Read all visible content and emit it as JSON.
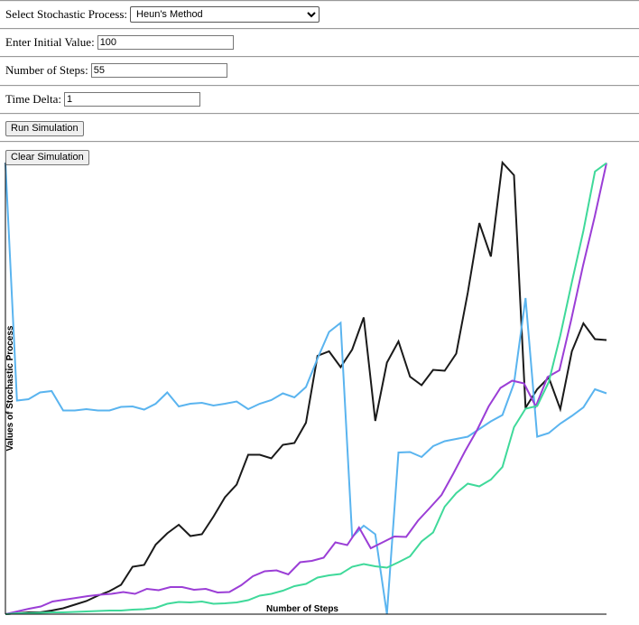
{
  "form": {
    "process_label": "Select Stochastic Process:",
    "process_value": "Heun's Method",
    "initial_label": "Enter Initial Value:",
    "initial_value": "100",
    "steps_label": "Number of Steps:",
    "steps_value": "55",
    "delta_label": "Time Delta:",
    "delta_value": "1",
    "run_label": "Run Simulation",
    "clear_label": "Clear Simulation"
  },
  "chart_data": {
    "type": "line",
    "xlabel": "Number of Steps",
    "ylabel": "Values of Stochastic Process",
    "xlim": [
      0,
      55
    ],
    "ylim": [
      0,
      100
    ],
    "grid": false,
    "series": [
      {
        "color": "#1a1a1a",
        "values": [
          0.0,
          0.2,
          0.4,
          0.4,
          0.8,
          1.3,
          2.1,
          2.9,
          4.1,
          5.1,
          6.5,
          10.5,
          10.9,
          15.4,
          17.9,
          19.8,
          17.3,
          17.7,
          21.6,
          25.9,
          28.7,
          35.3,
          35.3,
          34.5,
          37.5,
          37.9,
          42.4,
          57.2,
          58.2,
          54.7,
          58.6,
          65.7,
          42.8,
          55.7,
          60.4,
          52.6,
          50.7,
          54.1,
          53.9,
          57.7,
          71.2,
          86.6,
          79.2,
          100.0,
          97.2,
          45.7,
          49.8,
          52.4,
          45.4,
          58.2,
          64.4,
          60.9,
          60.7
        ]
      },
      {
        "color": "#5ab4ef",
        "values": [
          100.0,
          47.3,
          47.6,
          49.1,
          49.4,
          45.1,
          45.1,
          45.4,
          45.1,
          45.1,
          45.9,
          46.0,
          45.3,
          46.6,
          49.1,
          46.0,
          46.6,
          46.8,
          46.2,
          46.6,
          47.1,
          45.4,
          46.6,
          47.4,
          48.9,
          48.0,
          50.3,
          56.6,
          62.5,
          64.5,
          17.1,
          19.6,
          17.7,
          0.0,
          35.8,
          35.9,
          34.8,
          37.2,
          38.3,
          38.8,
          39.3,
          41.0,
          42.7,
          44.1,
          51.1,
          70.0,
          39.3,
          40.1,
          42.2,
          43.9,
          45.8,
          49.8,
          48.9
        ]
      },
      {
        "color": "#9b3ed6",
        "values": [
          0.0,
          0.6,
          1.2,
          1.7,
          2.8,
          3.2,
          3.6,
          4.0,
          4.3,
          4.5,
          4.9,
          4.5,
          5.6,
          5.3,
          6.0,
          6.0,
          5.4,
          5.6,
          4.8,
          4.9,
          6.4,
          8.4,
          9.5,
          9.7,
          8.8,
          11.5,
          11.8,
          12.5,
          15.9,
          15.3,
          19.2,
          14.6,
          15.9,
          17.2,
          17.1,
          20.7,
          23.5,
          26.4,
          31.1,
          36.1,
          40.7,
          46.0,
          50.1,
          51.7,
          51.1,
          46.0,
          52.5,
          54.0,
          65.1,
          77.1,
          88.0,
          99.9
        ]
      },
      {
        "color": "#3fd99a",
        "values": [
          0.0,
          0.2,
          0.2,
          0.3,
          0.4,
          0.4,
          0.5,
          0.6,
          0.7,
          0.8,
          0.8,
          1.0,
          1.1,
          1.4,
          2.3,
          2.7,
          2.6,
          2.8,
          2.3,
          2.4,
          2.6,
          3.1,
          4.1,
          4.5,
          5.2,
          6.2,
          6.7,
          8.1,
          8.6,
          8.9,
          10.5,
          11.1,
          10.6,
          10.3,
          11.5,
          12.8,
          16.1,
          18.1,
          23.8,
          26.8,
          28.9,
          28.3,
          29.8,
          32.6,
          41.4,
          45.5,
          46.1,
          51.4,
          61.7,
          73.5,
          84.9,
          98.0,
          99.9
        ]
      }
    ]
  }
}
